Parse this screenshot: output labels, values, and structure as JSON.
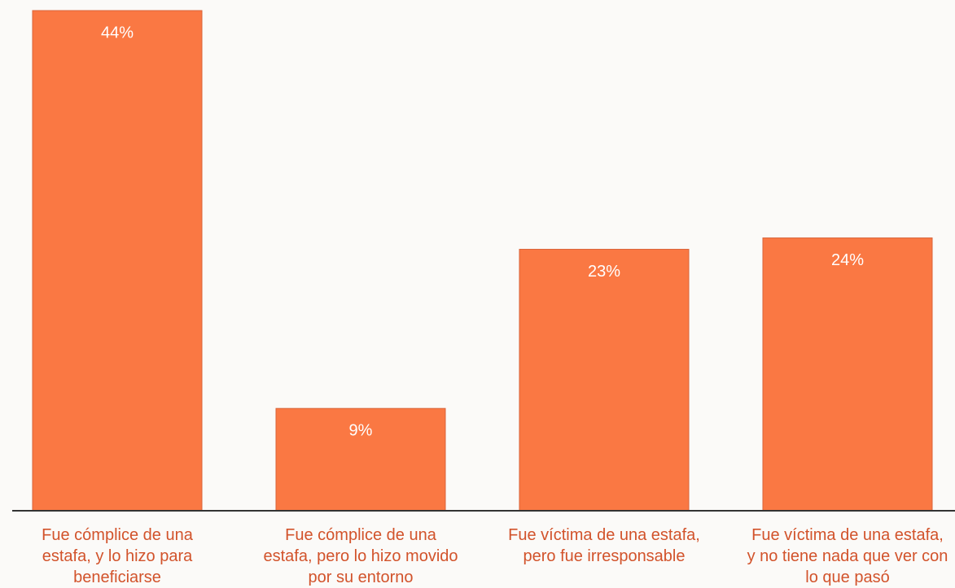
{
  "chart_data": {
    "type": "bar",
    "categories": [
      "Fue cómplice de una estafa, y lo hizo para beneficiarse",
      "Fue cómplice de una estafa, pero lo hizo movido por su entorno",
      "Fue víctima de una estafa, pero fue irresponsable",
      "Fue víctima de una estafa, y no tiene nada que ver con lo que pasó"
    ],
    "values": [
      44,
      9,
      23,
      24
    ],
    "value_labels": [
      "44%",
      "9%",
      "23%",
      "24%"
    ],
    "color": "#fa7843",
    "ylim": [
      0,
      44
    ]
  }
}
